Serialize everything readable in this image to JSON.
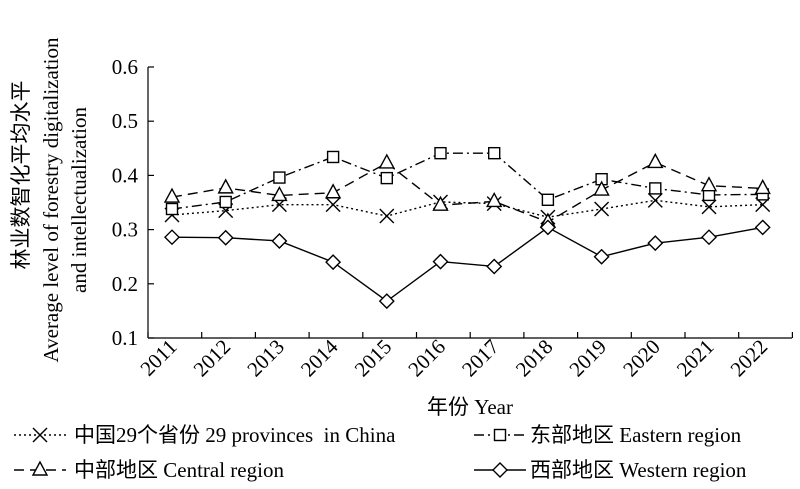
{
  "chart_data": {
    "type": "line",
    "ylabel_lines": [
      "林业数智化平均水平",
      "Average level of forestry digitalization",
      "and intellectualization"
    ],
    "xlabel": "年份 Year",
    "ylim": [
      0.1,
      0.6
    ],
    "yticks": [
      "0.1",
      "0.2",
      "0.3",
      "0.4",
      "0.5",
      "0.6"
    ],
    "categories": [
      "2011",
      "2012",
      "2013",
      "2014",
      "2015",
      "2016",
      "2017",
      "2018",
      "2019",
      "2020",
      "2021",
      "2022"
    ],
    "series": [
      {
        "name": "中国29个省份 29 provinces  in China",
        "marker": "x",
        "dash": "2,3",
        "values": [
          0.327,
          0.335,
          0.346,
          0.346,
          0.325,
          0.351,
          0.348,
          0.323,
          0.338,
          0.354,
          0.342,
          0.346
        ]
      },
      {
        "name": "东部地区 Eastern region",
        "marker": "square",
        "dash": "10,4,2,4",
        "values": [
          0.338,
          0.351,
          0.396,
          0.434,
          0.395,
          0.441,
          0.441,
          0.355,
          0.393,
          0.376,
          0.364,
          0.365
        ]
      },
      {
        "name": "中部地区 Central region",
        "marker": "triangle",
        "dash": "10,6",
        "values": [
          0.36,
          0.377,
          0.363,
          0.368,
          0.423,
          0.345,
          0.352,
          0.314,
          0.373,
          0.424,
          0.381,
          0.376
        ]
      },
      {
        "name": "西部地区 Western region",
        "marker": "diamond",
        "dash": "",
        "values": [
          0.286,
          0.285,
          0.279,
          0.24,
          0.168,
          0.241,
          0.232,
          0.304,
          0.25,
          0.275,
          0.286,
          0.304
        ]
      }
    ]
  }
}
